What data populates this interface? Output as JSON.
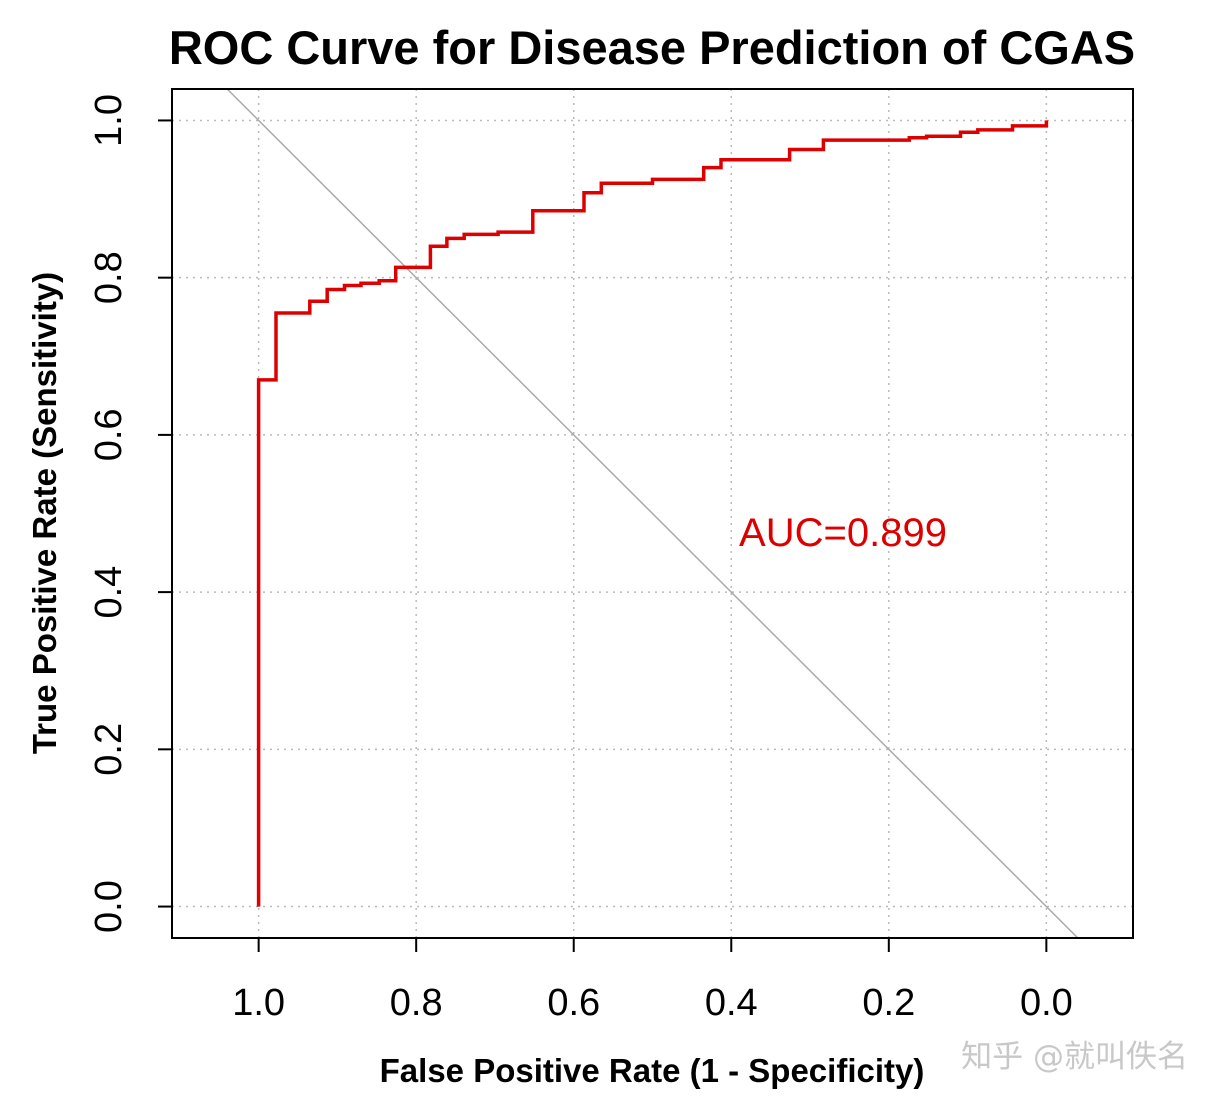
{
  "chart_data": {
    "type": "line",
    "title": "ROC Curve for Disease Prediction of CGAS",
    "xlabel": "False Positive Rate (1 - Specificity)",
    "ylabel": "True Positive Rate (Sensitivity)",
    "x_reversed": true,
    "xlim": [
      1.11,
      -0.11
    ],
    "ylim": [
      -0.04,
      1.04
    ],
    "x_ticks": [
      1.0,
      0.8,
      0.6,
      0.4,
      0.2,
      0.0
    ],
    "x_tick_labels": [
      "1.0",
      "0.8",
      "0.6",
      "0.4",
      "0.2",
      "0.0"
    ],
    "y_ticks": [
      0.0,
      0.2,
      0.4,
      0.6,
      0.8,
      1.0
    ],
    "y_tick_labels": [
      "0.0",
      "0.2",
      "0.4",
      "0.6",
      "0.8",
      "1.0"
    ],
    "grid": true,
    "reference_line": true,
    "annotation": "AUC=0.899",
    "annotation_color": "#dd0000",
    "curve_color": "#dd0000",
    "reference_color": "#aaaaaa",
    "grid_color": "#bbbbbb",
    "series": [
      {
        "x": [
          1.0,
          1.0,
          0.978,
          0.978,
          0.935,
          0.935,
          0.913,
          0.913,
          0.891,
          0.891,
          0.87,
          0.87,
          0.847,
          0.847,
          0.826,
          0.826,
          0.782,
          0.782,
          0.761,
          0.761,
          0.739,
          0.739,
          0.696,
          0.696,
          0.652,
          0.652,
          0.631,
          0.631,
          0.587,
          0.587,
          0.565,
          0.565,
          0.522,
          0.522,
          0.5,
          0.5,
          0.435,
          0.435,
          0.413,
          0.413,
          0.326,
          0.326,
          0.283,
          0.283,
          0.2,
          0.2,
          0.174,
          0.174,
          0.152,
          0.152,
          0.109,
          0.109,
          0.087,
          0.087,
          0.043,
          0.043,
          0.0,
          0.0
        ],
        "y": [
          0.0,
          0.67,
          0.67,
          0.755,
          0.755,
          0.77,
          0.77,
          0.785,
          0.785,
          0.79,
          0.79,
          0.793,
          0.793,
          0.796,
          0.796,
          0.813,
          0.813,
          0.84,
          0.84,
          0.85,
          0.85,
          0.855,
          0.855,
          0.858,
          0.858,
          0.885,
          0.885,
          0.885,
          0.885,
          0.908,
          0.908,
          0.92,
          0.92,
          0.92,
          0.92,
          0.925,
          0.925,
          0.94,
          0.94,
          0.95,
          0.95,
          0.963,
          0.963,
          0.975,
          0.975,
          0.975,
          0.975,
          0.978,
          0.978,
          0.98,
          0.98,
          0.985,
          0.985,
          0.988,
          0.988,
          0.993,
          0.993,
          1.0
        ]
      }
    ]
  },
  "watermark": "知乎 @就叫佚名"
}
